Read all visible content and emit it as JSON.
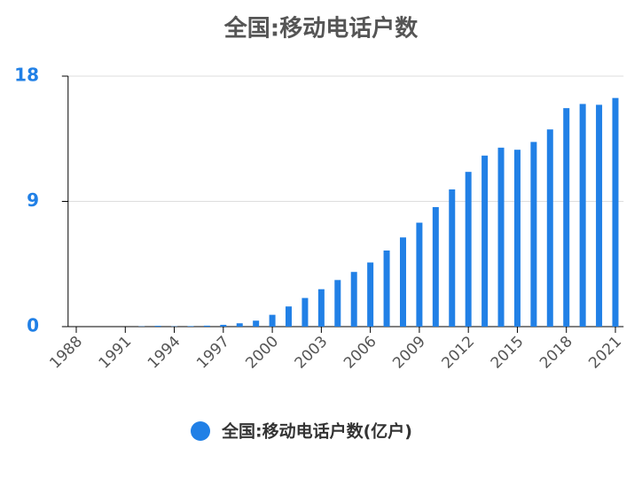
{
  "chart_data": {
    "type": "bar",
    "title": "全国:移动电话户数",
    "categories": [
      "1988",
      null,
      null,
      "1991",
      null,
      null,
      "1994",
      null,
      null,
      "1997",
      null,
      null,
      "2000",
      null,
      null,
      "2003",
      null,
      null,
      "2006",
      null,
      null,
      "2009",
      null,
      null,
      "2012",
      null,
      null,
      "2015",
      null,
      null,
      "2018",
      null,
      null,
      "2021"
    ],
    "series": [
      {
        "name": "全国:移动电话户数(亿户)",
        "color": "#2180e6",
        "values": [
          0,
          0,
          0,
          0,
          0.02,
          0.06,
          0.02,
          0.04,
          0.07,
          0.13,
          0.24,
          0.43,
          0.85,
          1.45,
          2.06,
          2.69,
          3.35,
          3.93,
          4.61,
          5.47,
          6.41,
          7.47,
          8.59,
          9.86,
          11.12,
          12.29,
          12.86,
          12.71,
          13.27,
          14.17,
          15.7,
          16.0,
          15.94,
          16.43
        ]
      }
    ],
    "ylim": [
      0,
      18
    ],
    "yticks": [
      0,
      9,
      18
    ],
    "grid": true,
    "legend": "bottom"
  }
}
